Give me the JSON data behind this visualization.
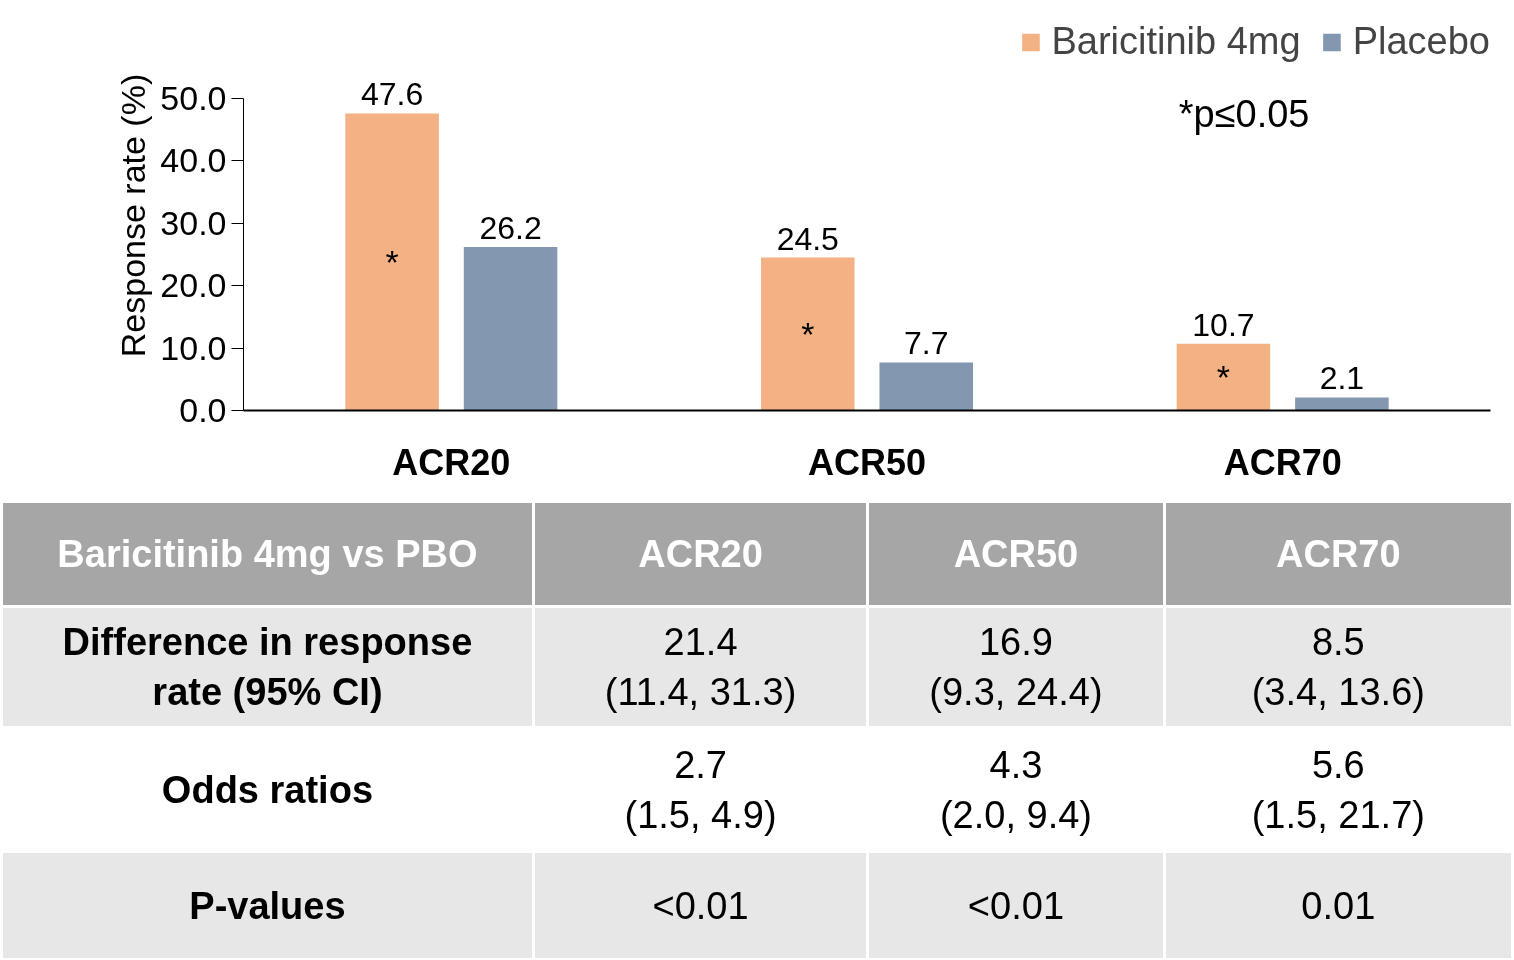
{
  "chart_data": {
    "type": "bar",
    "ylabel": "Response rate (%)",
    "categories": [
      "ACR20",
      "ACR50",
      "ACR70"
    ],
    "series": [
      {
        "name": "Baricitinib 4mg",
        "color": "#f4b183",
        "values": [
          47.6,
          24.5,
          10.7
        ]
      },
      {
        "name": "Placebo",
        "color": "#8497b0",
        "values": [
          26.2,
          7.7,
          2.1
        ]
      }
    ],
    "ylim": [
      0,
      50
    ],
    "yticks": [
      {
        "value": 0,
        "label": "0.0"
      },
      {
        "value": 10,
        "label": "10.0"
      },
      {
        "value": 20,
        "label": "20.0"
      },
      {
        "value": 30,
        "label": "30.0"
      },
      {
        "value": 40,
        "label": "40.0"
      },
      {
        "value": 50,
        "label": "50.0"
      }
    ],
    "data_labels": true,
    "grid": false,
    "legend": "top right",
    "annotations": [
      "*",
      "*",
      "*",
      "*p≤0.05",
      "Baricitinib 4mg vs PBO",
      "ACR20",
      "ACR50",
      "ACR70",
      "Difference in response\nrate (95% CI)",
      "21.4\n(11.4, 31.3)",
      "16.9\n(9.3, 24.4)",
      "8.5\n(3.4, 13.6)",
      "Odds ratios",
      "2.7\n(1.5, 4.9)",
      "4.3\n(2.0, 9.4)",
      "5.6\n(1.5, 21.7)",
      "P-values",
      "<0.01",
      "<0.01",
      "0.01"
    ]
  }
}
